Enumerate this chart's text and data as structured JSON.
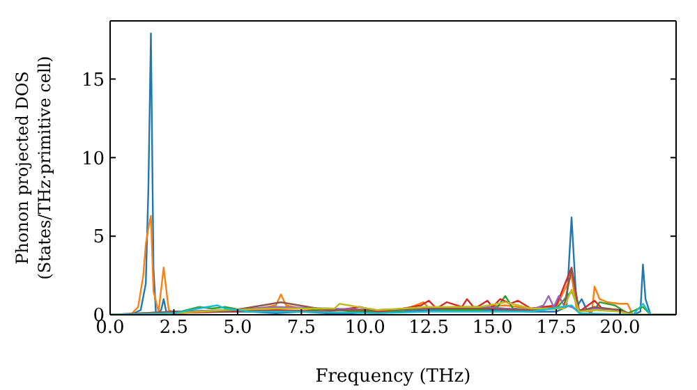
{
  "chart_data": {
    "type": "line",
    "xlabel": "Frequency (THz)",
    "ylabel": "Phonon projected DOS\n(States/THz·primitive cell)",
    "xlim": [
      0,
      22.2
    ],
    "ylim": [
      0,
      18.7
    ],
    "xticks": [
      {
        "value": 0,
        "label": "0.0"
      },
      {
        "value": 2.5,
        "label": "2.5"
      },
      {
        "value": 5,
        "label": "5.0"
      },
      {
        "value": 7.5,
        "label": "7.5"
      },
      {
        "value": 10,
        "label": "10.0"
      },
      {
        "value": 12.5,
        "label": "12.5"
      },
      {
        "value": 15,
        "label": "15.0"
      },
      {
        "value": 17.5,
        "label": "17.5"
      },
      {
        "value": 20,
        "label": "20.0"
      }
    ],
    "yticks": [
      0,
      5,
      10,
      15
    ],
    "marker": "none",
    "line_style": "solid",
    "series": [
      {
        "color": "#1f77b4",
        "x": [
          0,
          0.8,
          1.2,
          1.4,
          1.5,
          1.6,
          1.7,
          1.8,
          2.0,
          2.1,
          2.2,
          2.5,
          3.5,
          4.5,
          5.5,
          6.5,
          7.5,
          8.5,
          9.5,
          10.5,
          11.5,
          12.5,
          13.5,
          14.5,
          15.5,
          16.5,
          17.5,
          17.9,
          18.1,
          18.3,
          18.5,
          18.7,
          19.0,
          19.5,
          20.0,
          20.5,
          20.8,
          20.9,
          21.0,
          21.2,
          22.2
        ],
        "values": [
          0,
          0,
          0.3,
          2,
          8,
          17.9,
          3,
          0,
          0.3,
          1.0,
          0.2,
          0.1,
          0.2,
          0.2,
          0.2,
          0.1,
          0.2,
          0.1,
          0.1,
          0.2,
          0.2,
          0.3,
          0.3,
          0.3,
          0.3,
          0.2,
          0.2,
          0.5,
          6.2,
          0.5,
          1.0,
          0.3,
          0,
          0,
          0,
          0,
          0.2,
          3.2,
          1.0,
          0,
          0
        ]
      },
      {
        "color": "#ff7f0e",
        "x": [
          0,
          0.8,
          1.1,
          1.3,
          1.4,
          1.5,
          1.6,
          1.7,
          1.9,
          2.1,
          2.3,
          2.6,
          3.5,
          4.5,
          5.5,
          6.5,
          6.7,
          6.9,
          7.5,
          8.5,
          9.5,
          10.5,
          11.5,
          12.3,
          12.5,
          13.5,
          14.5,
          15.5,
          16.5,
          17.5,
          18.1,
          18.3,
          18.9,
          19.0,
          19.2,
          19.5,
          20.0,
          20.3,
          20.5,
          22.2
        ],
        "values": [
          0,
          0,
          0.5,
          2.5,
          4.5,
          5.5,
          6.3,
          1.5,
          0.2,
          3.0,
          0.3,
          0.1,
          0.2,
          0.2,
          0.3,
          0.6,
          1.3,
          0.6,
          0.4,
          0.3,
          0.3,
          0.2,
          0.3,
          0.8,
          0.4,
          0.5,
          0.5,
          0.6,
          0.4,
          0.5,
          2.5,
          0.3,
          0.2,
          1.8,
          1.0,
          0.8,
          0.7,
          0.7,
          0,
          0
        ]
      },
      {
        "color": "#2ca02c",
        "x": [
          0,
          2.5,
          3.5,
          4.0,
          4.5,
          5.5,
          6.5,
          7.5,
          8.5,
          9.5,
          10.5,
          11.5,
          12.5,
          13.5,
          14.5,
          15.2,
          15.5,
          15.8,
          16.5,
          17.5,
          18.1,
          18.4,
          19.0,
          19.2,
          19.8,
          20.3,
          20.9,
          21.2,
          22.2
        ],
        "values": [
          0,
          0.1,
          0.5,
          0.4,
          0.5,
          0.2,
          0.3,
          0.2,
          0.4,
          0.2,
          0.2,
          0.3,
          0.4,
          0.3,
          0.3,
          0.5,
          1.2,
          0.4,
          0.3,
          0.4,
          1.5,
          0.3,
          0.3,
          0.8,
          0.6,
          0.1,
          0.5,
          0,
          0
        ]
      },
      {
        "color": "#d62728",
        "x": [
          0,
          2.5,
          4.5,
          6.5,
          8.5,
          9.8,
          10.5,
          11.5,
          12.2,
          12.5,
          12.8,
          13.2,
          13.8,
          14.0,
          14.3,
          14.8,
          15.0,
          15.3,
          15.7,
          16.0,
          16.5,
          17.0,
          17.5,
          18.1,
          18.4,
          19.0,
          19.3,
          20.0
        ],
        "values": [
          0,
          0.1,
          0.2,
          0.3,
          0.2,
          0.5,
          0.2,
          0.4,
          0.6,
          0.9,
          0.4,
          0.8,
          0.5,
          1.0,
          0.4,
          0.9,
          0.5,
          1.0,
          0.7,
          0.9,
          0.4,
          0.5,
          0.6,
          3.0,
          0.2,
          0.9,
          0.4,
          0.3
        ]
      },
      {
        "color": "#9467bd",
        "x": [
          0,
          2.5,
          4.5,
          6.5,
          8.5,
          10.5,
          12.5,
          14.5,
          16.5,
          17.0,
          17.2,
          17.4,
          17.6,
          17.8,
          18.1,
          18.4,
          19.0,
          20.0
        ],
        "values": [
          0,
          0.2,
          0.3,
          0.5,
          0.4,
          0.3,
          0.4,
          0.5,
          0.3,
          0.6,
          1.2,
          0.5,
          1.2,
          0.6,
          0.5,
          0.2,
          0.4,
          0.3
        ]
      },
      {
        "color": "#8c564b",
        "x": [
          0,
          2.5,
          4.5,
          6.7,
          8.5,
          10.5,
          12.5,
          14.5,
          16.5,
          17.8,
          18.1,
          18.4,
          19.0,
          20.0,
          20.5,
          22.2
        ],
        "values": [
          0,
          0.2,
          0.2,
          0.8,
          0.3,
          0.3,
          0.4,
          0.4,
          0.3,
          0.5,
          2.9,
          0.2,
          0.5,
          0.3,
          0,
          0
        ]
      },
      {
        "color": "#bcbd22",
        "x": [
          0,
          2.5,
          4.5,
          6.5,
          8.8,
          9.0,
          10.5,
          12.5,
          14.5,
          15.5,
          16.5,
          17.8,
          18.1,
          18.4,
          19.0,
          20.0,
          20.5,
          22.2
        ],
        "values": [
          0,
          0.1,
          0.3,
          0.4,
          0.4,
          0.7,
          0.3,
          0.5,
          0.5,
          0.8,
          0.4,
          0.4,
          1.6,
          0.2,
          0.3,
          0.2,
          0,
          0
        ]
      },
      {
        "color": "#17becf",
        "x": [
          0,
          2.5,
          3.8,
          4.2,
          4.5,
          5.5,
          7.5,
          10.5,
          12.5,
          14.5,
          16.5,
          18.1,
          18.4,
          20.5,
          20.9,
          21.2,
          22.2
        ],
        "values": [
          0,
          0.1,
          0.5,
          0.6,
          0.4,
          0.2,
          0.2,
          0.1,
          0.2,
          0.2,
          0.2,
          0.6,
          0.1,
          0,
          0.7,
          0,
          0
        ]
      }
    ]
  }
}
